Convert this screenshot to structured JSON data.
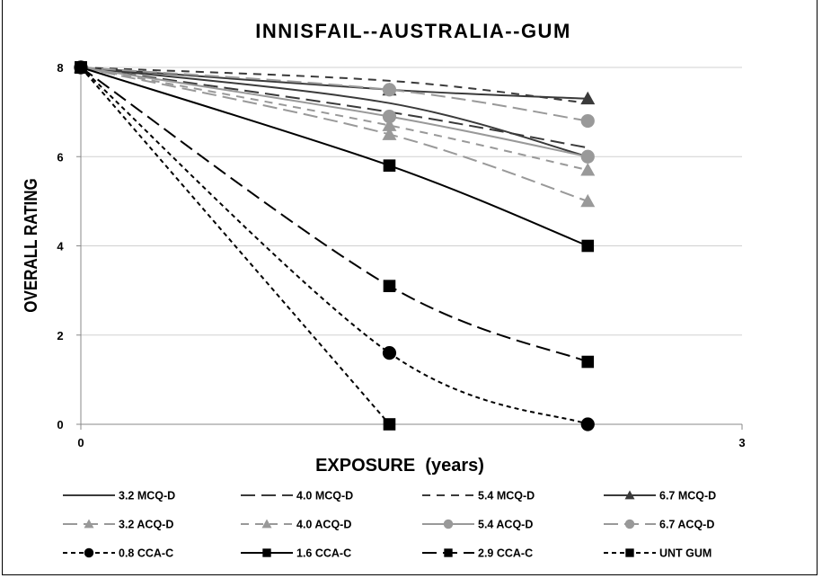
{
  "chart_data": {
    "type": "line",
    "title": "INNISFAIL--AUSTRALIA--GUM",
    "xlabel": "EXPOSURE  (years)",
    "ylabel": "OVERALL RATING",
    "xlim": [
      0,
      3
    ],
    "ylim": [
      0,
      8
    ],
    "x_ticks": [
      "0",
      "3"
    ],
    "y_ticks": [
      "0",
      "2",
      "4",
      "6",
      "8"
    ],
    "grid": "horizontal",
    "legend_position": "bottom",
    "series": [
      {
        "name": "3.2 MCQ-D",
        "color": "#3a3a3a",
        "dash": "solid",
        "marker": "none",
        "points": [
          [
            0,
            8
          ],
          [
            1.4,
            7.2
          ],
          [
            2.3,
            6.0
          ]
        ]
      },
      {
        "name": "4.0 MCQ-D",
        "color": "#3a3a3a",
        "dash": "long",
        "marker": "none",
        "points": [
          [
            0,
            8
          ],
          [
            1.4,
            7.0
          ],
          [
            2.3,
            6.2
          ]
        ]
      },
      {
        "name": "5.4 MCQ-D",
        "color": "#3a3a3a",
        "dash": "medium",
        "marker": "none",
        "points": [
          [
            0,
            8
          ],
          [
            1.4,
            7.7
          ],
          [
            2.3,
            7.2
          ]
        ]
      },
      {
        "name": "6.7 MCQ-D",
        "color": "#3a3a3a",
        "dash": "solid",
        "marker": "triangle",
        "points": [
          [
            0,
            8
          ],
          [
            1.4,
            7.5
          ],
          [
            2.3,
            7.3
          ]
        ]
      },
      {
        "name": "3.2 ACQ-D",
        "color": "#999999",
        "dash": "long",
        "marker": "triangle",
        "points": [
          [
            0,
            8
          ],
          [
            1.4,
            6.5
          ],
          [
            2.3,
            5.0
          ]
        ]
      },
      {
        "name": "4.0 ACQ-D",
        "color": "#999999",
        "dash": "medium",
        "marker": "triangle",
        "points": [
          [
            0,
            8
          ],
          [
            1.4,
            6.7
          ],
          [
            2.3,
            5.7
          ]
        ]
      },
      {
        "name": "5.4 ACQ-D",
        "color": "#999999",
        "dash": "solid",
        "marker": "circle",
        "points": [
          [
            0,
            8
          ],
          [
            1.4,
            6.9
          ],
          [
            2.3,
            6.0
          ]
        ]
      },
      {
        "name": "6.7 ACQ-D",
        "color": "#999999",
        "dash": "long",
        "marker": "circle",
        "points": [
          [
            0,
            8
          ],
          [
            1.4,
            7.5
          ],
          [
            2.3,
            6.8
          ]
        ]
      },
      {
        "name": "0.8 CCA-C",
        "color": "#000000",
        "dash": "short",
        "marker": "circle",
        "points": [
          [
            0,
            8
          ],
          [
            1.4,
            1.6
          ],
          [
            2.3,
            0.0
          ]
        ]
      },
      {
        "name": "1.6 CCA-C",
        "color": "#000000",
        "dash": "solid",
        "marker": "square",
        "points": [
          [
            0,
            8
          ],
          [
            1.4,
            5.8
          ],
          [
            2.3,
            4.0
          ]
        ]
      },
      {
        "name": "2.9 CCA-C",
        "color": "#000000",
        "dash": "long",
        "marker": "square",
        "points": [
          [
            0,
            8
          ],
          [
            1.4,
            3.1
          ],
          [
            2.3,
            1.4
          ]
        ]
      },
      {
        "name": "UNT GUM",
        "color": "#000000",
        "dash": "short",
        "marker": "square",
        "points": [
          [
            0,
            8
          ],
          [
            1.4,
            0.0
          ]
        ]
      }
    ]
  }
}
